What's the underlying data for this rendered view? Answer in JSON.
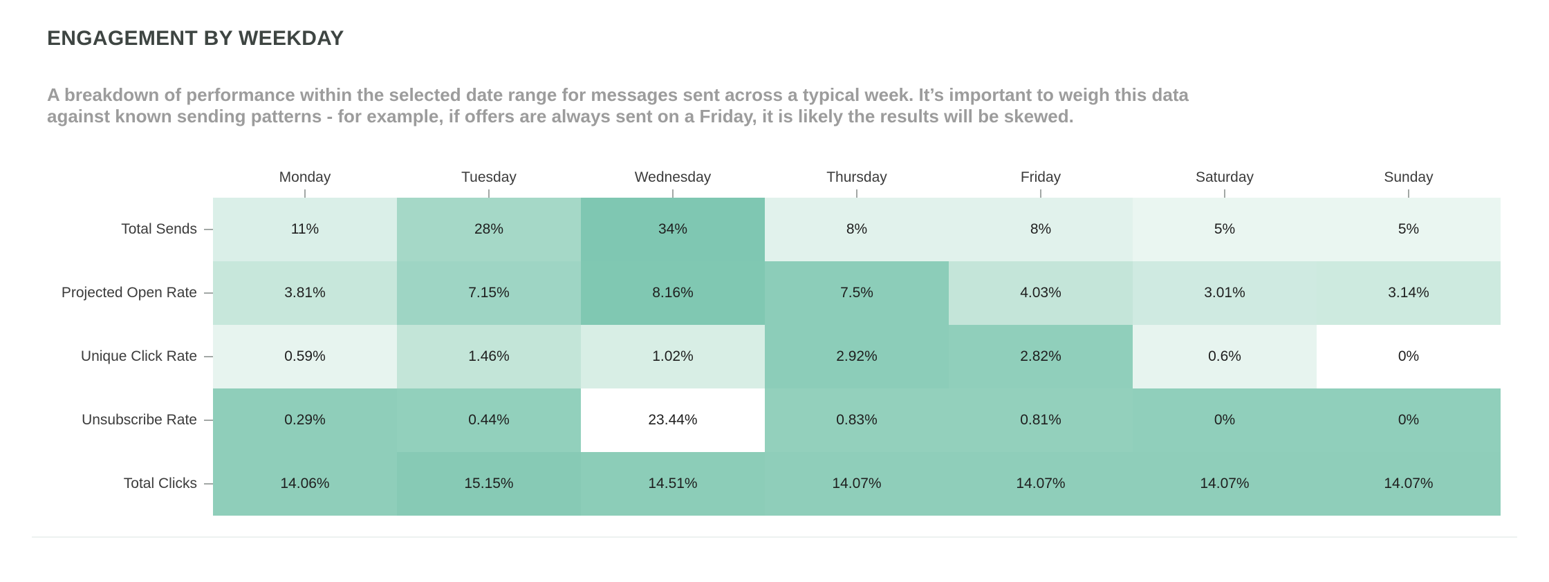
{
  "header": {
    "title": "ENGAGEMENT BY WEEKDAY",
    "description": "A breakdown of performance within the selected date range for messages sent across a typical week. It’s important to weigh this data against known sending patterns - for example, if offers are always sent on a Friday, it is likely the results will be skewed."
  },
  "chart_data": {
    "type": "heatmap",
    "title": "ENGAGEMENT BY WEEKDAY",
    "legend": "none",
    "grid": "off",
    "palette": {
      "min_color": "#ffffff",
      "max_color": "#7fc7b1"
    },
    "columns": [
      "Monday",
      "Tuesday",
      "Wednesday",
      "Thursday",
      "Friday",
      "Saturday",
      "Sunday"
    ],
    "rows": [
      {
        "label": "Total Sends",
        "values": [
          "11%",
          "28%",
          "34%",
          "8%",
          "8%",
          "5%",
          "5%"
        ],
        "numeric": [
          11,
          28,
          34,
          8,
          8,
          5,
          5
        ],
        "colors": [
          "#daefe8",
          "#a5d8c7",
          "#7fc7b2",
          "#e1f2ec",
          "#e1f2ec",
          "#eaf6f1",
          "#eaf6f1"
        ]
      },
      {
        "label": "Projected Open Rate",
        "values": [
          "3.81%",
          "7.15%",
          "8.16%",
          "7.5%",
          "4.03%",
          "3.01%",
          "3.14%"
        ],
        "numeric": [
          3.81,
          7.15,
          8.16,
          7.5,
          4.03,
          3.01,
          3.14
        ],
        "colors": [
          "#c7e7db",
          "#9ed5c4",
          "#80c8b2",
          "#8ccdb9",
          "#c4e5d9",
          "#cfeae1",
          "#cdeadf"
        ]
      },
      {
        "label": "Unique Click Rate",
        "values": [
          "0.59%",
          "1.46%",
          "1.02%",
          "2.92%",
          "2.82%",
          "0.6%",
          "0%"
        ],
        "numeric": [
          0.59,
          1.46,
          1.02,
          2.92,
          2.82,
          0.6,
          0
        ],
        "colors": [
          "#e7f4ef",
          "#c3e5d8",
          "#d8eee5",
          "#8ccdb9",
          "#90cfbb",
          "#e7f4ef",
          "#ffffff"
        ]
      },
      {
        "label": "Unsubscribe Rate",
        "values": [
          "0.29%",
          "0.44%",
          "23.44%",
          "0.83%",
          "0.81%",
          "0%",
          "0%"
        ],
        "numeric": [
          0.29,
          0.44,
          23.44,
          0.83,
          0.81,
          0,
          0
        ],
        "colors": [
          "#8fceba",
          "#92d0bc",
          "#ffffff",
          "#93d0bc",
          "#93d0bc",
          "#90cfbb",
          "#90cfbb"
        ]
      },
      {
        "label": "Total Clicks",
        "values": [
          "14.06%",
          "15.15%",
          "14.51%",
          "14.07%",
          "14.07%",
          "14.07%",
          "14.07%"
        ],
        "numeric": [
          14.06,
          15.15,
          14.51,
          14.07,
          14.07,
          14.07,
          14.07
        ],
        "colors": [
          "#8fceba",
          "#87cab5",
          "#8ccdb8",
          "#8fceba",
          "#8fceba",
          "#8fceba",
          "#8fceba"
        ]
      }
    ]
  }
}
